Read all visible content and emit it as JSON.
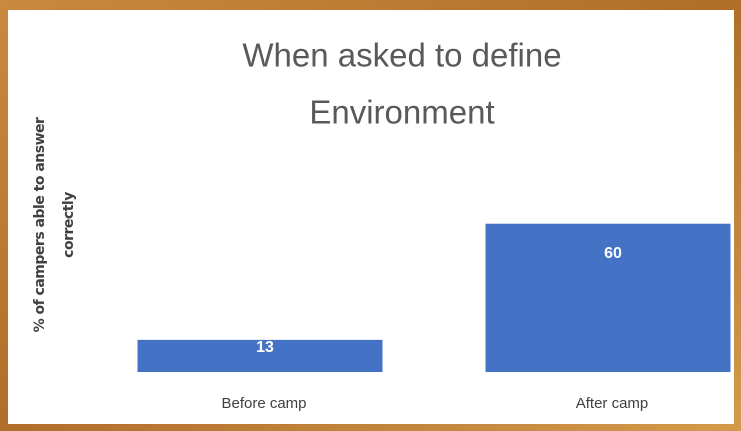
{
  "chart_data": {
    "type": "bar",
    "title": [
      "When asked to define",
      "Environment"
    ],
    "y_label": [
      "% of campers able to answer",
      "correctly"
    ],
    "categories": [
      "Before camp",
      "After camp"
    ],
    "values": [
      13,
      60
    ],
    "color": "#4472c4",
    "label_color": "#ffffff",
    "ylim": [
      0,
      70
    ]
  }
}
